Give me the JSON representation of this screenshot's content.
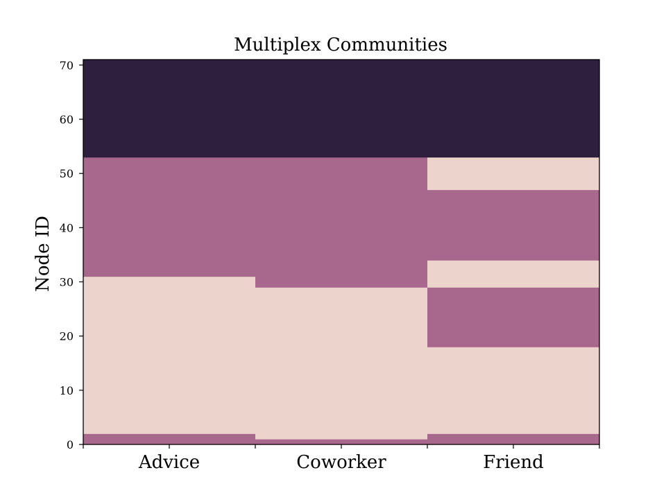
{
  "chart_data": {
    "type": "heatmap",
    "title": "Multiplex Communities",
    "xlabel": "",
    "ylabel": "Node ID",
    "categories": [
      "Advice",
      "Coworker",
      "Friend"
    ],
    "ylim": [
      0,
      71
    ],
    "yticks": [
      0,
      10,
      20,
      30,
      40,
      50,
      60,
      70
    ],
    "grid": false,
    "legend": "none",
    "colors": {
      "community_1": "#ecd3cb",
      "community_2": "#a8678d",
      "community_3": "#2e1f3f",
      "axis": "#000000"
    },
    "columns": [
      {
        "name": "Advice",
        "segments": [
          {
            "from": 0,
            "to": 2,
            "community": "community_2"
          },
          {
            "from": 2,
            "to": 31,
            "community": "community_1"
          },
          {
            "from": 31,
            "to": 53,
            "community": "community_2"
          },
          {
            "from": 53,
            "to": 71,
            "community": "community_3"
          }
        ]
      },
      {
        "name": "Coworker",
        "segments": [
          {
            "from": 0,
            "to": 1,
            "community": "community_2"
          },
          {
            "from": 1,
            "to": 29,
            "community": "community_1"
          },
          {
            "from": 29,
            "to": 53,
            "community": "community_2"
          },
          {
            "from": 53,
            "to": 71,
            "community": "community_3"
          }
        ]
      },
      {
        "name": "Friend",
        "segments": [
          {
            "from": 0,
            "to": 2,
            "community": "community_2"
          },
          {
            "from": 2,
            "to": 18,
            "community": "community_1"
          },
          {
            "from": 18,
            "to": 29,
            "community": "community_2"
          },
          {
            "from": 29,
            "to": 34,
            "community": "community_1"
          },
          {
            "from": 34,
            "to": 47,
            "community": "community_2"
          },
          {
            "from": 47,
            "to": 53,
            "community": "community_1"
          },
          {
            "from": 53,
            "to": 71,
            "community": "community_3"
          }
        ]
      }
    ]
  }
}
